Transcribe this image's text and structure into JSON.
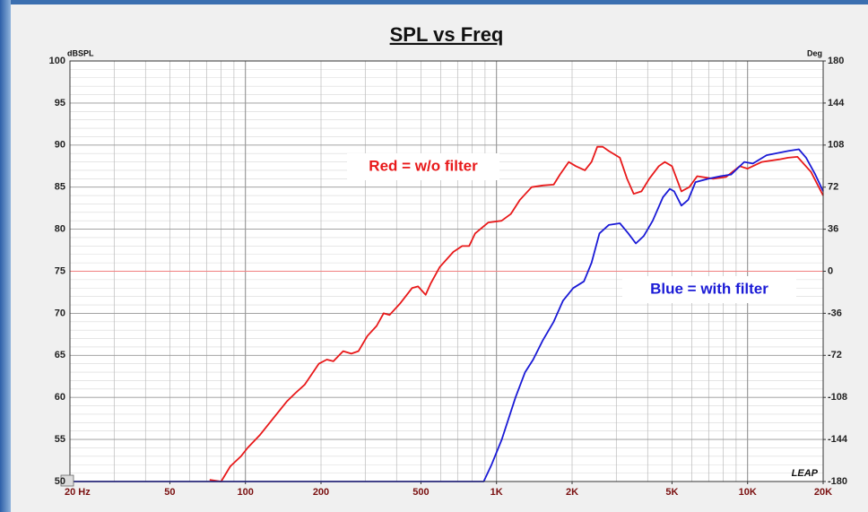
{
  "chart_data": {
    "type": "line",
    "title": "SPL vs Freq",
    "y_label": "dBSPL",
    "y2_label": "Deg",
    "logo": "LEAP",
    "annotations": [
      "Red = w/o filter",
      "Blue = with filter"
    ],
    "xscale": "log",
    "grid": true,
    "xlim": [
      20,
      20000
    ],
    "xticks": [
      {
        "value": 20,
        "label": "20 Hz"
      },
      50,
      100,
      200,
      500,
      {
        "value": 1000,
        "label": "1K"
      },
      {
        "value": 2000,
        "label": "2K"
      },
      {
        "value": 5000,
        "label": "5K"
      },
      {
        "value": 10000,
        "label": "10K"
      },
      {
        "value": 20000,
        "label": "20K"
      }
    ],
    "ylim": [
      50,
      100
    ],
    "yticks": [
      50,
      55,
      60,
      65,
      70,
      75,
      80,
      85,
      90,
      95,
      100
    ],
    "y2lim": [
      -180,
      180
    ],
    "y2ticks": [
      -180,
      -144,
      -108,
      -72,
      -36,
      0,
      36,
      72,
      108,
      144,
      180
    ],
    "y2_reference": 0,
    "series": [
      {
        "name": "Red = w/o filter",
        "color": "#e8191a",
        "x": [
          72,
          80,
          87,
          96,
          102,
          114,
          129,
          146,
          158,
          172,
          196,
          211,
          224,
          245,
          264,
          282,
          306,
          333,
          355,
          375,
          414,
          461,
          487,
          522,
          546,
          594,
          673,
          730,
          778,
          822,
          928,
          1048,
          1140,
          1240,
          1380,
          1530,
          1690,
          1790,
          1940,
          2070,
          2250,
          2390,
          2520,
          2650,
          2800,
          3100,
          3310,
          3520,
          3780,
          4060,
          4430,
          4680,
          5000,
          5450,
          5860,
          6300,
          7300,
          8200,
          9300,
          10000,
          11400,
          13400,
          14500,
          15800,
          17900,
          20000
        ],
        "values": [
          50.2,
          50,
          51.8,
          53,
          54,
          55.5,
          57.5,
          59.5,
          60.5,
          61.5,
          64,
          64.5,
          64.3,
          65.5,
          65.2,
          65.5,
          67.3,
          68.5,
          70,
          69.8,
          71.2,
          73,
          73.2,
          72.2,
          73.5,
          75.5,
          77.3,
          78,
          78,
          79.5,
          80.8,
          81,
          81.8,
          83.5,
          85,
          85.2,
          85.3,
          86.5,
          88,
          87.5,
          87,
          88,
          89.8,
          89.8,
          89.3,
          88.5,
          86,
          84.2,
          84.5,
          86,
          87.5,
          88,
          87.5,
          84.5,
          85,
          86.3,
          86,
          86.2,
          87.5,
          87.2,
          88,
          88.3,
          88.5,
          88.6,
          86.8,
          84
        ]
      },
      {
        "name": "Blue = with filter",
        "color": "#1a1ad6",
        "x": [
          20,
          889,
          956,
          1050,
          1190,
          1300,
          1400,
          1530,
          1690,
          1840,
          2020,
          2230,
          2390,
          2570,
          2800,
          3100,
          3350,
          3590,
          3860,
          4190,
          4600,
          4900,
          5100,
          5450,
          5800,
          6200,
          7000,
          7800,
          8600,
          9700,
          10500,
          11900,
          14500,
          16000,
          17100,
          18600,
          20000
        ],
        "values": [
          50,
          50,
          52,
          55,
          60,
          63,
          64.5,
          66.8,
          69,
          71.5,
          73,
          73.8,
          76,
          79.5,
          80.5,
          80.7,
          79.5,
          78.3,
          79.2,
          81,
          83.8,
          84.8,
          84.5,
          82.8,
          83.5,
          85.6,
          86,
          86.3,
          86.5,
          88,
          87.8,
          88.8,
          89.3,
          89.5,
          88.5,
          86.5,
          84.5
        ]
      }
    ]
  }
}
